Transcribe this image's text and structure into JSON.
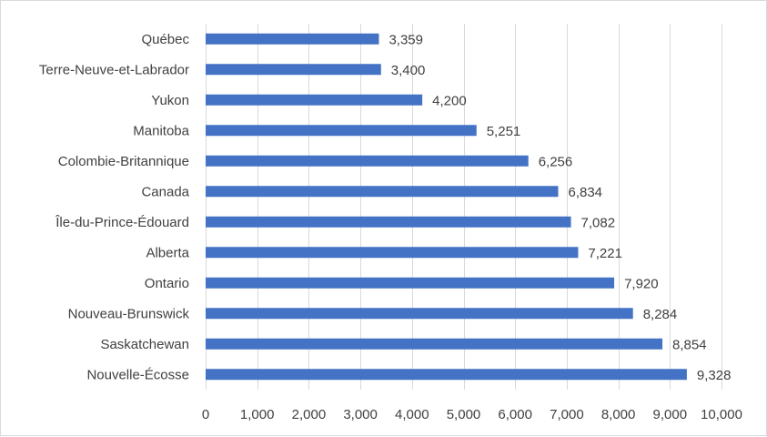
{
  "chart_data": {
    "type": "bar",
    "orientation": "horizontal",
    "categories": [
      "Québec",
      "Terre-Neuve-et-Labrador",
      "Yukon",
      "Manitoba",
      "Colombie-Britannique",
      "Canada",
      "Île-du-Prince-Édouard",
      "Alberta",
      "Ontario",
      "Nouveau-Brunswick",
      "Saskatchewan",
      "Nouvelle-Écosse"
    ],
    "values": [
      3359,
      3400,
      4200,
      5251,
      6256,
      6834,
      7082,
      7221,
      7920,
      8284,
      8854,
      9328
    ],
    "data_labels": [
      "3,359",
      "3,400",
      "4,200",
      "5,251",
      "6,256",
      "6,834",
      "7,082",
      "7,221",
      "7,920",
      "8,284",
      "8,854",
      "9,328"
    ],
    "xlim": [
      0,
      10000
    ],
    "x_ticks": [
      0,
      1000,
      2000,
      3000,
      4000,
      5000,
      6000,
      7000,
      8000,
      9000,
      10000
    ],
    "x_tick_labels": [
      "0",
      "1,000",
      "2,000",
      "3,000",
      "4,000",
      "5,000",
      "6,000",
      "7,000",
      "8,000",
      "9,000",
      "10,000"
    ],
    "title": "",
    "xlabel": "",
    "ylabel": "",
    "grid": "vertical",
    "legend": "none",
    "colors": {
      "bar": "#4472c4",
      "grid": "#d9d9d9",
      "text": "#404040"
    }
  }
}
